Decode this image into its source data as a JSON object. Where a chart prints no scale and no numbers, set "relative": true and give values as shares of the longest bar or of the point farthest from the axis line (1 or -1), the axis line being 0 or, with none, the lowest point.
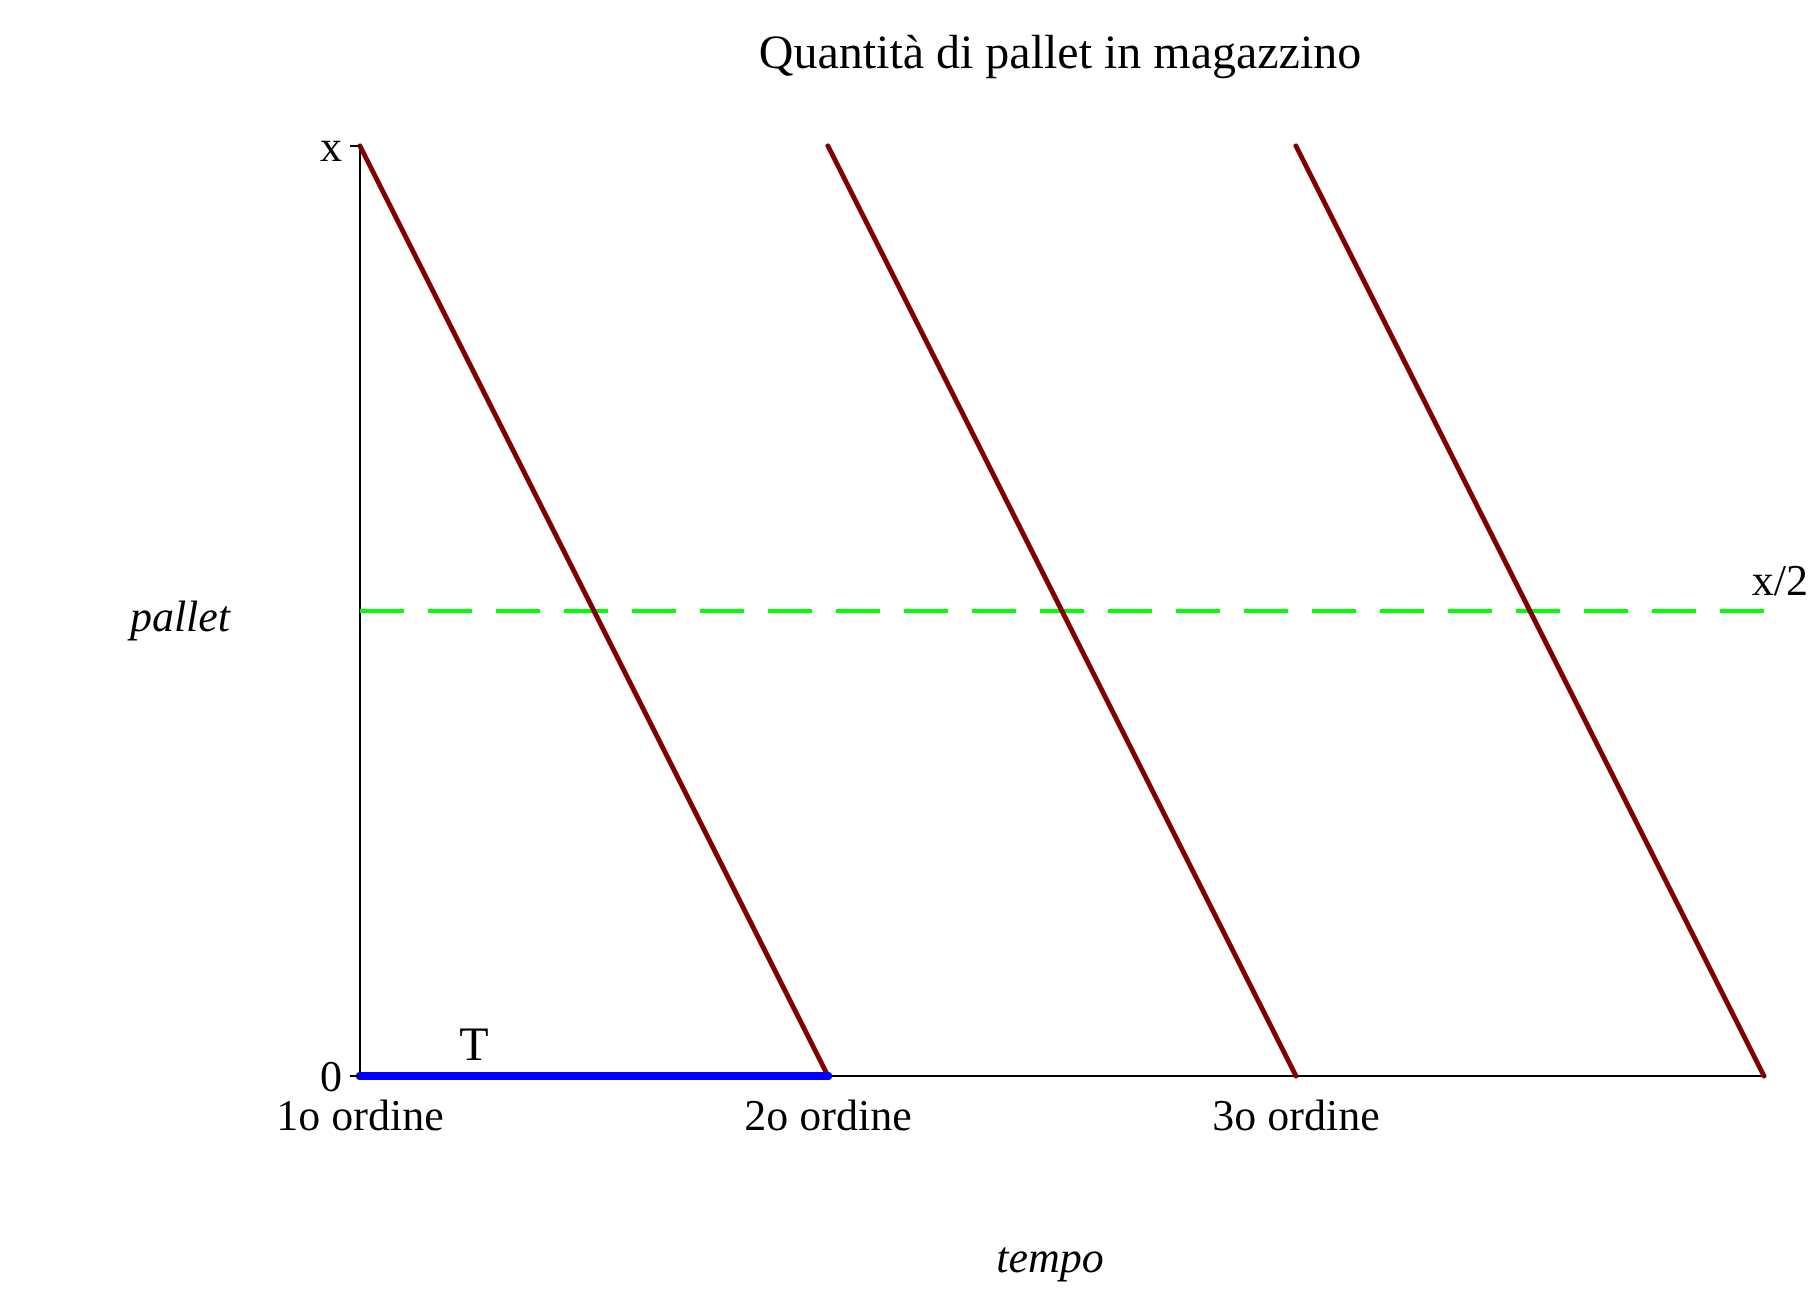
{
  "chart_data": {
    "type": "line",
    "title": "Quantità di pallet in magazzino",
    "xlabel": "tempo",
    "ylabel": "pallet",
    "relative": true,
    "categories": [
      "1o ordine",
      "2o ordine",
      "3o ordine",
      null
    ],
    "series": [
      {
        "color": "#800000",
        "values": [
          1,
          0,
          null,
          null
        ]
      },
      {
        "color": "#800000",
        "values": [
          null,
          1,
          0,
          null
        ]
      },
      {
        "color": "#800000",
        "values": [
          null,
          null,
          1,
          0
        ]
      },
      {
        "name": "T",
        "color": "#0000ff",
        "values": [
          0,
          0,
          null,
          null
        ]
      }
    ],
    "ref_lines": [
      {
        "axis": "y",
        "value": 0.5,
        "label": "x/2",
        "color": "#00ff00",
        "line_style": "dashed"
      }
    ],
    "annotations": [
      "x",
      "0"
    ],
    "line_style": "solid"
  }
}
